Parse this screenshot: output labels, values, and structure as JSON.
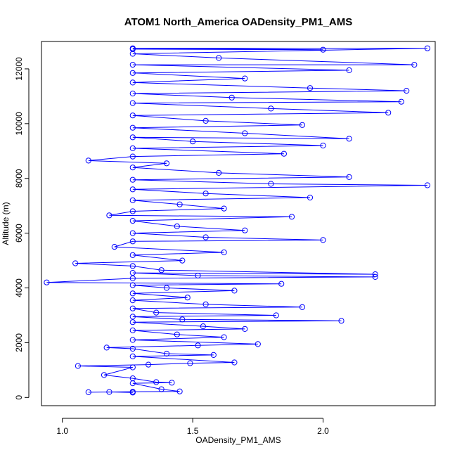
{
  "chart_data": {
    "type": "scatter",
    "title": "ATOM1 North_America OADensity_PM1_AMS",
    "xlabel": "OADensity_PM1_AMS",
    "ylabel": "Altitude (m)",
    "xlim": [
      0.92,
      2.43
    ],
    "ylim": [
      -300,
      13000
    ],
    "x_ticks": [
      1.0,
      1.5,
      2.0
    ],
    "x_tick_labels": [
      "1.0",
      "1.5",
      "2.0"
    ],
    "y_ticks": [
      0,
      2000,
      4000,
      6000,
      8000,
      10000,
      12000
    ],
    "y_tick_labels": [
      "0",
      "2000",
      "4000",
      "6000",
      "8000",
      "10000",
      "12000"
    ],
    "grid": false,
    "marker": "open-circle",
    "connected": true,
    "series_color": "#0000ff",
    "series": [
      {
        "name": "OADensity_PM1_AMS vs Altitude",
        "points": [
          [
            1.27,
            180
          ],
          [
            1.18,
            200
          ],
          [
            1.1,
            190
          ],
          [
            1.27,
            210
          ],
          [
            1.45,
            220
          ],
          [
            1.38,
            300
          ],
          [
            1.27,
            520
          ],
          [
            1.42,
            540
          ],
          [
            1.36,
            560
          ],
          [
            1.27,
            700
          ],
          [
            1.16,
            820
          ],
          [
            1.27,
            1100
          ],
          [
            1.06,
            1150
          ],
          [
            1.33,
            1200
          ],
          [
            1.49,
            1250
          ],
          [
            1.66,
            1280
          ],
          [
            1.27,
            1500
          ],
          [
            1.58,
            1550
          ],
          [
            1.4,
            1600
          ],
          [
            1.27,
            1780
          ],
          [
            1.17,
            1820
          ],
          [
            1.52,
            1900
          ],
          [
            1.75,
            1950
          ],
          [
            1.27,
            2100
          ],
          [
            1.62,
            2200
          ],
          [
            1.44,
            2300
          ],
          [
            1.27,
            2450
          ],
          [
            1.7,
            2500
          ],
          [
            1.54,
            2600
          ],
          [
            1.27,
            2750
          ],
          [
            2.07,
            2800
          ],
          [
            1.46,
            2850
          ],
          [
            1.27,
            2950
          ],
          [
            1.82,
            3000
          ],
          [
            1.36,
            3100
          ],
          [
            1.27,
            3250
          ],
          [
            1.92,
            3300
          ],
          [
            1.55,
            3400
          ],
          [
            1.27,
            3550
          ],
          [
            1.48,
            3650
          ],
          [
            1.27,
            3800
          ],
          [
            1.66,
            3900
          ],
          [
            1.4,
            4000
          ],
          [
            1.27,
            4100
          ],
          [
            1.84,
            4150
          ],
          [
            0.94,
            4200
          ],
          [
            1.27,
            4350
          ],
          [
            2.2,
            4400
          ],
          [
            1.52,
            4450
          ],
          [
            1.27,
            4550
          ],
          [
            2.2,
            4500
          ],
          [
            1.38,
            4650
          ],
          [
            1.27,
            4800
          ],
          [
            1.05,
            4900
          ],
          [
            1.46,
            5000
          ],
          [
            1.27,
            5200
          ],
          [
            1.62,
            5300
          ],
          [
            1.2,
            5500
          ],
          [
            1.27,
            5700
          ],
          [
            2.0,
            5750
          ],
          [
            1.55,
            5850
          ],
          [
            1.27,
            6000
          ],
          [
            1.7,
            6100
          ],
          [
            1.44,
            6250
          ],
          [
            1.27,
            6450
          ],
          [
            1.88,
            6600
          ],
          [
            1.18,
            6650
          ],
          [
            1.27,
            6800
          ],
          [
            1.62,
            6900
          ],
          [
            1.45,
            7050
          ],
          [
            1.27,
            7200
          ],
          [
            1.95,
            7300
          ],
          [
            1.55,
            7450
          ],
          [
            1.27,
            7600
          ],
          [
            2.4,
            7750
          ],
          [
            1.8,
            7800
          ],
          [
            1.27,
            7950
          ],
          [
            2.1,
            8050
          ],
          [
            1.6,
            8200
          ],
          [
            1.27,
            8400
          ],
          [
            1.4,
            8550
          ],
          [
            1.1,
            8650
          ],
          [
            1.27,
            8800
          ],
          [
            1.85,
            8900
          ],
          [
            1.27,
            9100
          ],
          [
            2.0,
            9200
          ],
          [
            1.5,
            9350
          ],
          [
            1.27,
            9500
          ],
          [
            2.1,
            9450
          ],
          [
            1.7,
            9650
          ],
          [
            1.27,
            9850
          ],
          [
            1.92,
            9950
          ],
          [
            1.55,
            10100
          ],
          [
            1.27,
            10300
          ],
          [
            2.25,
            10400
          ],
          [
            1.8,
            10550
          ],
          [
            1.27,
            10750
          ],
          [
            2.3,
            10800
          ],
          [
            1.65,
            10950
          ],
          [
            1.27,
            11100
          ],
          [
            2.32,
            11200
          ],
          [
            1.95,
            11300
          ],
          [
            1.27,
            11500
          ],
          [
            1.7,
            11650
          ],
          [
            1.27,
            11850
          ],
          [
            2.1,
            11950
          ],
          [
            1.27,
            12150
          ],
          [
            2.35,
            12150
          ],
          [
            1.6,
            12400
          ],
          [
            1.27,
            12550
          ],
          [
            2.4,
            12750
          ],
          [
            1.27,
            12750
          ],
          [
            2.0,
            12700
          ],
          [
            1.27,
            12720
          ]
        ]
      }
    ]
  }
}
